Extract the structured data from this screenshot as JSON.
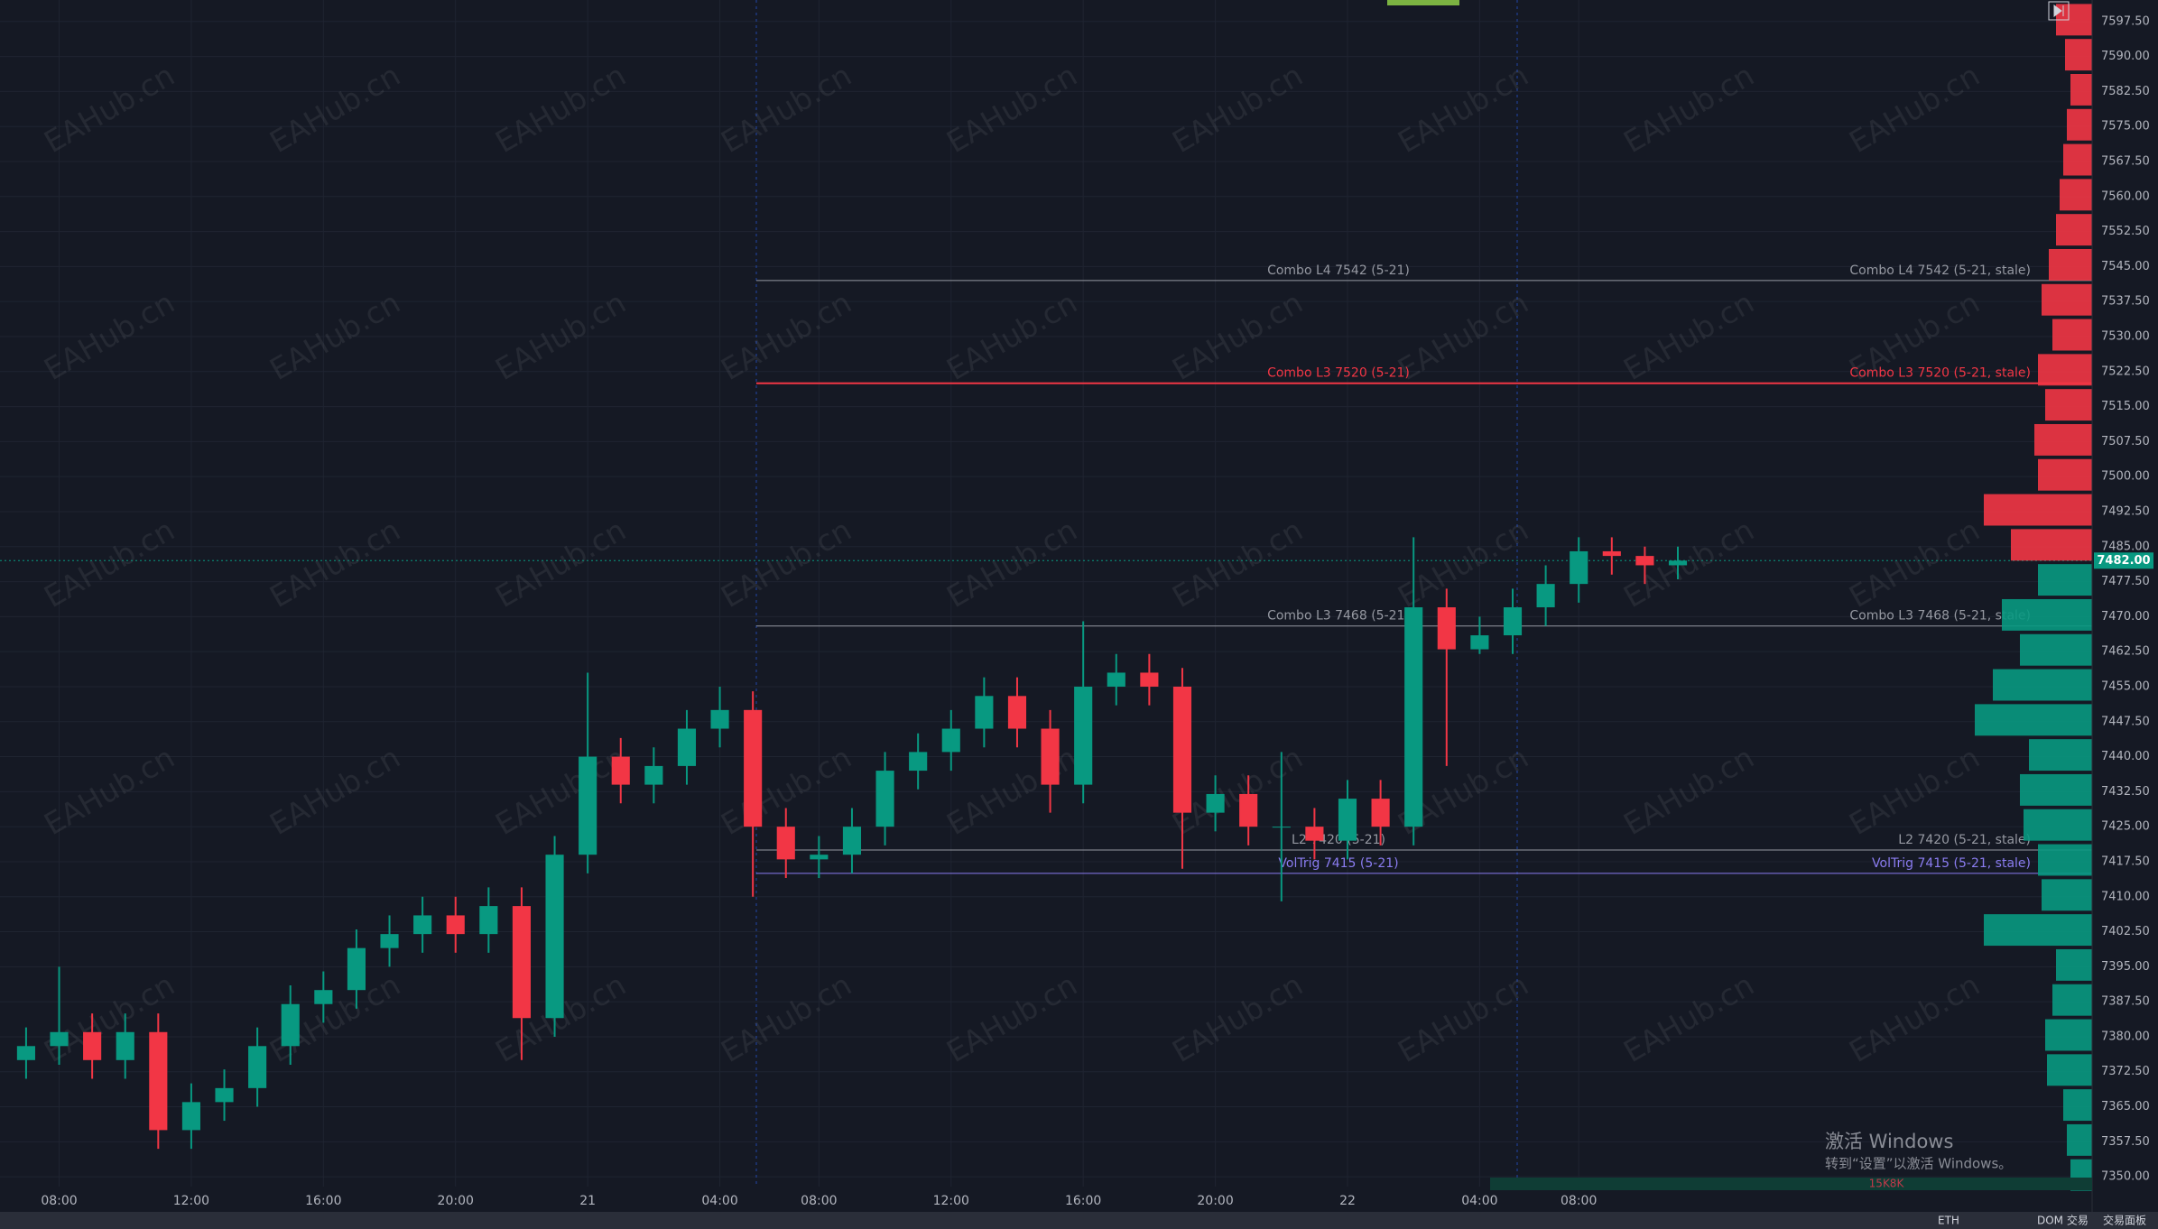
{
  "chart_data": {
    "type": "candlestick",
    "x": [
      -1,
      0,
      1,
      2,
      3,
      4,
      5,
      6,
      7,
      8,
      9,
      10,
      11,
      12,
      13,
      14,
      15,
      16,
      17,
      18,
      19,
      20,
      21,
      22,
      23,
      24,
      25,
      26,
      27,
      28,
      29,
      30,
      31,
      32,
      33,
      34,
      35,
      36,
      37,
      38,
      39,
      40,
      41,
      42,
      43,
      44,
      45,
      46,
      47,
      48,
      49
    ],
    "open": [
      7375,
      7378,
      7381,
      7375,
      7381,
      7360,
      7366,
      7369,
      7378,
      7387,
      7390,
      7399,
      7402,
      7406,
      7402,
      7408,
      7384,
      7419,
      7440,
      7434,
      7438,
      7446,
      7450,
      7425,
      7418,
      7419,
      7425,
      7437,
      7441,
      7446,
      7453,
      7446,
      7434,
      7455,
      7458,
      7455,
      7428,
      7432,
      7425,
      7425,
      7422,
      7431,
      7425,
      7472,
      7463,
      7466,
      7472,
      7477,
      7484,
      7483,
      7481
    ],
    "high": [
      7382,
      7395,
      7385,
      7385,
      7385,
      7370,
      7373,
      7382,
      7391,
      7394,
      7403,
      7406,
      7410,
      7410,
      7412,
      7412,
      7423,
      7458,
      7444,
      7442,
      7450,
      7455,
      7454,
      7429,
      7423,
      7429,
      7441,
      7445,
      7450,
      7457,
      7457,
      7450,
      7469,
      7462,
      7462,
      7459,
      7436,
      7436,
      7441,
      7429,
      7435,
      7435,
      7487,
      7476,
      7470,
      7476,
      7481,
      7487,
      7487,
      7485,
      7485
    ],
    "low": [
      7371,
      7374,
      7371,
      7371,
      7356,
      7356,
      7362,
      7365,
      7374,
      7383,
      7386,
      7395,
      7398,
      7398,
      7398,
      7375,
      7380,
      7415,
      7430,
      7430,
      7434,
      7442,
      7410,
      7414,
      7414,
      7415,
      7421,
      7433,
      7437,
      7442,
      7442,
      7428,
      7430,
      7451,
      7451,
      7416,
      7424,
      7421,
      7409,
      7418,
      7418,
      7421,
      7421,
      7438,
      7462,
      7462,
      7468,
      7473,
      7479,
      7477,
      7478
    ],
    "close": [
      7378,
      7381,
      7375,
      7381,
      7360,
      7366,
      7369,
      7378,
      7387,
      7390,
      7399,
      7402,
      7406,
      7402,
      7408,
      7384,
      7419,
      7440,
      7434,
      7438,
      7446,
      7450,
      7425,
      7418,
      7419,
      7425,
      7437,
      7441,
      7446,
      7453,
      7446,
      7434,
      7455,
      7458,
      7455,
      7428,
      7432,
      7425,
      7425,
      7422,
      7431,
      7425,
      7472,
      7463,
      7466,
      7472,
      7477,
      7484,
      7483,
      7481,
      7482
    ],
    "up_color": "#089981",
    "down_color": "#f23645",
    "xlim": [
      -1.79,
      61.54
    ],
    "xticks": [
      {
        "value": 0,
        "label": "08:00"
      },
      {
        "value": 4,
        "label": "12:00"
      },
      {
        "value": 8,
        "label": "16:00"
      },
      {
        "value": 12,
        "label": "20:00"
      },
      {
        "value": 16,
        "label": "21"
      },
      {
        "value": 20,
        "label": "04:00"
      },
      {
        "value": 23,
        "label": "08:00"
      },
      {
        "value": 27,
        "label": "12:00"
      },
      {
        "value": 31,
        "label": "16:00"
      },
      {
        "value": 35,
        "label": "20:00"
      },
      {
        "value": 39,
        "label": "22"
      },
      {
        "value": 43,
        "label": "04:00"
      },
      {
        "value": 46,
        "label": "08:00"
      }
    ],
    "ylim": [
      7347.9,
      7602.1
    ],
    "yticks": [
      {
        "value": 7350,
        "label": "7350.00"
      },
      {
        "value": 7357.5,
        "label": "7357.50"
      },
      {
        "value": 7365,
        "label": "7365.00"
      },
      {
        "value": 7372.5,
        "label": "7372.50"
      },
      {
        "value": 7380,
        "label": "7380.00"
      },
      {
        "value": 7387.5,
        "label": "7387.50"
      },
      {
        "value": 7395,
        "label": "7395.00"
      },
      {
        "value": 7402.5,
        "label": "7402.50"
      },
      {
        "value": 7410,
        "label": "7410.00"
      },
      {
        "value": 7417.5,
        "label": "7417.50"
      },
      {
        "value": 7425,
        "label": "7425.00"
      },
      {
        "value": 7432.5,
        "label": "7432.50"
      },
      {
        "value": 7440,
        "label": "7440.00"
      },
      {
        "value": 7447.5,
        "label": "7447.50"
      },
      {
        "value": 7455,
        "label": "7455.00"
      },
      {
        "value": 7462.5,
        "label": "7462.50"
      },
      {
        "value": 7470,
        "label": "7470.00"
      },
      {
        "value": 7477.5,
        "label": "7477.50"
      },
      {
        "value": 7485,
        "label": "7485.00"
      },
      {
        "value": 7492.5,
        "label": "7492.50"
      },
      {
        "value": 7500,
        "label": "7500.00"
      },
      {
        "value": 7507.5,
        "label": "7507.50"
      },
      {
        "value": 7515,
        "label": "7515.00"
      },
      {
        "value": 7522.5,
        "label": "7522.50"
      },
      {
        "value": 7530,
        "label": "7530.00"
      },
      {
        "value": 7537.5,
        "label": "7537.50"
      },
      {
        "value": 7545,
        "label": "7545.00"
      },
      {
        "value": 7552.5,
        "label": "7552.50"
      },
      {
        "value": 7560,
        "label": "7560.00"
      },
      {
        "value": 7567.5,
        "label": "7567.50"
      },
      {
        "value": 7575,
        "label": "7575.00"
      },
      {
        "value": 7582.5,
        "label": "7582.50"
      },
      {
        "value": 7590,
        "label": "7590.00"
      },
      {
        "value": 7597.5,
        "label": "7597.50"
      }
    ],
    "grid": true,
    "levels": [
      {
        "price": 7542,
        "label": "Combo L4 7542 (5-21)",
        "right_label": "Combo L4 7542 (5-21, stale)",
        "color": "#9598a1"
      },
      {
        "price": 7520,
        "label": "Combo L3 7520 (5-21)",
        "right_label": "Combo L3 7520 (5-21, stale)",
        "color": "#f23645"
      },
      {
        "price": 7468,
        "label": "Combo L3 7468 (5-21)",
        "right_label": "Combo L3 7468 (5-21, stale)",
        "color": "#9598a1"
      },
      {
        "price": 7420,
        "label": "L2 7420 (5-21)",
        "right_label": "L2 7420 (5-21, stale)",
        "color": "#9598a1"
      },
      {
        "price": 7415,
        "label": "VolTrig 7415 (5-21)",
        "right_label": "VolTrig 7415 (5-21, stale)",
        "color": "#8a7cf0"
      }
    ],
    "last_price": 7482,
    "last_price_label": "7482.00",
    "volume_profile": {
      "prices": [
        7350,
        7357.5,
        7365,
        7372.5,
        7380,
        7387.5,
        7395,
        7402.5,
        7410,
        7417.5,
        7425,
        7432.5,
        7440,
        7447.5,
        7455,
        7462.5,
        7470,
        7477.5,
        7485,
        7492.5,
        7500,
        7507.5,
        7515,
        7522.5,
        7530,
        7537.5,
        7545,
        7552.5,
        7560,
        7567.5,
        7575,
        7582.5,
        7590,
        7597.5
      ],
      "values": [
        12,
        14,
        16,
        25,
        26,
        22,
        20,
        60,
        28,
        30,
        38,
        40,
        35,
        65,
        55,
        40,
        50,
        30,
        45,
        60,
        30,
        32,
        26,
        30,
        22,
        28,
        24,
        20,
        18,
        16,
        14,
        12,
        15,
        20
      ],
      "label": "15K8K"
    }
  },
  "watermark": "EAHub.cn",
  "os_notice": {
    "title": "激活 Windows",
    "text": "转到“设置”以激活 Windows。"
  },
  "toolbar": {
    "symbol": "ETH",
    "dom": "DOM 交易",
    "panel": "交易面板"
  }
}
